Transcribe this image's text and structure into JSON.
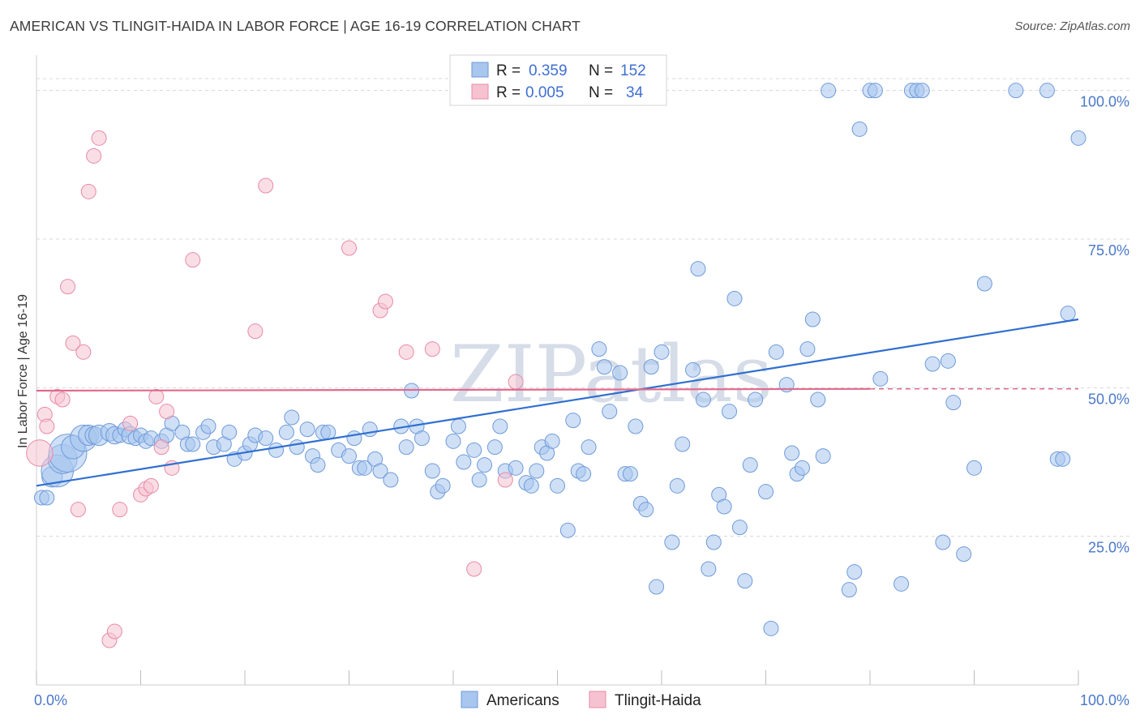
{
  "title": "AMERICAN VS TLINGIT-HAIDA IN LABOR FORCE | AGE 16-19 CORRELATION CHART",
  "source": "Source: ZipAtlas.com",
  "watermark": "ZIPatlas",
  "colors": {
    "americans_fill": "#a8c6ee",
    "americans_stroke": "#6f9ad9",
    "americans_line": "#2f6fd0",
    "tlingit_fill": "#f6c2d2",
    "tlingit_stroke": "#e88aa8",
    "tlingit_line": "#e06a8e",
    "grid": "#d8d8d8",
    "axis_label": "#4a78c8"
  },
  "legend": {
    "r_label": "R =",
    "n_label": "N =",
    "americans": {
      "r": "0.359",
      "n": "152"
    },
    "tlingit": {
      "r": "0.005",
      "n": "34"
    }
  },
  "chart_data": {
    "type": "scatter",
    "title": "AMERICAN VS TLINGIT-HAIDA IN LABOR FORCE | AGE 16-19 CORRELATION CHART",
    "xlabel": "",
    "ylabel": "In Labor Force | Age 16-19",
    "xlim": [
      0,
      100
    ],
    "ylim": [
      0,
      105
    ],
    "x_tick_labels": [
      "0.0%",
      "100.0%"
    ],
    "y_ticks": [
      25,
      50,
      75,
      100
    ],
    "y_tick_labels": [
      "25.0%",
      "50.0%",
      "75.0%",
      "100.0%"
    ],
    "grid": "horizontal dashed",
    "legend_position": "bottom-center",
    "series": [
      {
        "name": "Americans",
        "trendline": {
          "x": [
            0,
            100
          ],
          "y": [
            33.5,
            61.5
          ]
        },
        "points": [
          [
            0.5,
            31.5,
            1
          ],
          [
            1,
            31.5,
            1
          ],
          [
            1.5,
            35,
            1.4
          ],
          [
            2,
            36,
            2.2
          ],
          [
            2.5,
            38,
            2
          ],
          [
            3,
            39,
            2.6
          ],
          [
            3.5,
            40,
            1.6
          ],
          [
            4.5,
            41.5,
            1.8
          ],
          [
            5,
            42,
            1.4
          ],
          [
            5.5,
            42,
            1.2
          ],
          [
            6,
            42,
            1.4
          ],
          [
            7,
            42.5,
            1.2
          ],
          [
            7.5,
            42,
            1.2
          ],
          [
            8,
            42,
            1
          ],
          [
            8.5,
            43,
            1
          ],
          [
            9,
            42,
            1.2
          ],
          [
            9.5,
            41.5,
            1
          ],
          [
            10,
            42,
            1
          ],
          [
            10.5,
            41,
            1
          ],
          [
            11,
            41.5,
            1
          ],
          [
            12,
            41,
            1
          ],
          [
            12.5,
            42,
            1
          ],
          [
            13,
            44,
            1
          ],
          [
            14,
            42.5,
            1
          ],
          [
            14.5,
            40.5,
            1
          ],
          [
            15,
            40.5,
            1
          ],
          [
            16,
            42.5,
            1
          ],
          [
            16.5,
            43.5,
            1
          ],
          [
            17,
            40,
            1
          ],
          [
            18,
            40.5,
            1
          ],
          [
            18.5,
            42.5,
            1
          ],
          [
            19,
            38,
            1
          ],
          [
            20,
            39,
            1
          ],
          [
            20.5,
            40.5,
            1
          ],
          [
            21,
            42,
            1
          ],
          [
            22,
            41.5,
            1
          ],
          [
            23,
            39.5,
            1
          ],
          [
            24,
            42.5,
            1
          ],
          [
            24.5,
            45,
            1
          ],
          [
            25,
            40,
            1
          ],
          [
            26,
            43,
            1
          ],
          [
            26.5,
            38.5,
            1
          ],
          [
            27,
            37,
            1
          ],
          [
            27.5,
            42.5,
            1
          ],
          [
            28,
            42.5,
            1
          ],
          [
            29,
            39.5,
            1
          ],
          [
            30,
            38.5,
            1
          ],
          [
            30.5,
            41.5,
            1
          ],
          [
            31,
            36.5,
            1
          ],
          [
            31.5,
            36.5,
            1
          ],
          [
            32,
            43,
            1
          ],
          [
            32.5,
            38,
            1
          ],
          [
            33,
            36,
            1
          ],
          [
            34,
            34.5,
            1
          ],
          [
            35,
            43.5,
            1
          ],
          [
            35.5,
            40,
            1
          ],
          [
            36,
            49.5,
            1
          ],
          [
            36.5,
            43.5,
            1
          ],
          [
            37,
            41.5,
            1
          ],
          [
            38,
            36,
            1
          ],
          [
            38.5,
            32.5,
            1
          ],
          [
            39,
            33.5,
            1
          ],
          [
            40,
            41,
            1
          ],
          [
            40.5,
            43.5,
            1
          ],
          [
            41,
            37.5,
            1
          ],
          [
            42,
            39.5,
            1
          ],
          [
            42.5,
            34.5,
            1
          ],
          [
            43,
            37,
            1
          ],
          [
            44,
            40,
            1
          ],
          [
            44.5,
            43.5,
            1
          ],
          [
            45,
            36,
            1
          ],
          [
            46,
            36.5,
            1
          ],
          [
            47,
            34,
            1
          ],
          [
            47.5,
            33.5,
            1
          ],
          [
            48,
            36,
            1
          ],
          [
            48.5,
            40,
            1
          ],
          [
            49,
            39,
            1
          ],
          [
            49.5,
            41,
            1
          ],
          [
            50,
            33.5,
            1
          ],
          [
            51,
            26,
            1
          ],
          [
            51.5,
            44.5,
            1
          ],
          [
            52,
            36,
            1
          ],
          [
            52.5,
            35.5,
            1
          ],
          [
            53,
            40,
            1
          ],
          [
            54,
            56.5,
            1
          ],
          [
            54.5,
            53.5,
            1
          ],
          [
            55,
            46,
            1
          ],
          [
            56,
            52.5,
            1
          ],
          [
            56.5,
            35.5,
            1
          ],
          [
            57,
            35.5,
            1
          ],
          [
            57.5,
            43.5,
            1
          ],
          [
            58,
            30.5,
            1
          ],
          [
            58.5,
            29.5,
            1
          ],
          [
            59,
            53.5,
            1
          ],
          [
            59.5,
            16.5,
            1
          ],
          [
            60,
            56,
            1
          ],
          [
            61,
            24,
            1
          ],
          [
            61.5,
            33.5,
            1
          ],
          [
            62,
            40.5,
            1
          ],
          [
            63,
            53,
            1
          ],
          [
            63.5,
            70,
            1
          ],
          [
            64,
            48,
            1
          ],
          [
            64.5,
            19.5,
            1
          ],
          [
            65,
            24,
            1
          ],
          [
            65.5,
            32,
            1
          ],
          [
            66,
            30,
            1
          ],
          [
            66.5,
            46,
            1
          ],
          [
            67,
            65,
            1
          ],
          [
            67.5,
            26.5,
            1
          ],
          [
            68,
            17.5,
            1
          ],
          [
            68.5,
            37,
            1
          ],
          [
            69,
            48,
            1
          ],
          [
            70,
            32.5,
            1
          ],
          [
            70.5,
            9.5,
            1
          ],
          [
            71,
            56,
            1
          ],
          [
            72,
            50.5,
            1
          ],
          [
            72.5,
            39,
            1
          ],
          [
            73,
            35.5,
            1
          ],
          [
            73.5,
            36.5,
            1
          ],
          [
            74,
            56.5,
            1
          ],
          [
            74.5,
            61.5,
            1
          ],
          [
            75,
            48,
            1
          ],
          [
            75.5,
            38.5,
            1
          ],
          [
            76,
            100,
            1
          ],
          [
            78,
            16,
            1
          ],
          [
            78.5,
            19,
            1
          ],
          [
            79,
            93.5,
            1
          ],
          [
            80,
            100,
            1
          ],
          [
            80.5,
            100,
            1
          ],
          [
            81,
            51.5,
            1
          ],
          [
            83,
            17,
            1
          ],
          [
            84,
            100,
            1
          ],
          [
            84.5,
            100,
            1
          ],
          [
            85,
            100,
            1
          ],
          [
            86,
            54,
            1
          ],
          [
            87,
            24,
            1
          ],
          [
            87.5,
            54.5,
            1
          ],
          [
            88,
            47.5,
            1
          ],
          [
            89,
            22,
            1
          ],
          [
            90,
            36.5,
            1
          ],
          [
            91,
            67.5,
            1
          ],
          [
            94,
            100,
            1
          ],
          [
            97,
            100,
            1
          ],
          [
            98,
            38,
            1
          ],
          [
            98.5,
            38,
            1
          ],
          [
            100,
            92,
            1
          ],
          [
            99,
            62.5,
            1
          ]
        ]
      },
      {
        "name": "Tlingit-Haida",
        "trendline": {
          "x": [
            0,
            80
          ],
          "y": [
            49.5,
            49.8
          ]
        },
        "points": [
          [
            0.3,
            39,
            1.8
          ],
          [
            0.8,
            45.5,
            1
          ],
          [
            1,
            43.5,
            1
          ],
          [
            2,
            48.5,
            1
          ],
          [
            2.5,
            48,
            1
          ],
          [
            3,
            67,
            1
          ],
          [
            3.5,
            57.5,
            1
          ],
          [
            4,
            29.5,
            1
          ],
          [
            4.5,
            56,
            1
          ],
          [
            5,
            83,
            1
          ],
          [
            5.5,
            89,
            1
          ],
          [
            6,
            92,
            1
          ],
          [
            7,
            7.5,
            1
          ],
          [
            7.5,
            9,
            1
          ],
          [
            8,
            29.5,
            1
          ],
          [
            9,
            44,
            1
          ],
          [
            10,
            32,
            1
          ],
          [
            10.5,
            33,
            1
          ],
          [
            11,
            33.5,
            1
          ],
          [
            11.5,
            48.5,
            1
          ],
          [
            12,
            40,
            1
          ],
          [
            12.5,
            46,
            1
          ],
          [
            13,
            36.5,
            1
          ],
          [
            15,
            71.5,
            1
          ],
          [
            21,
            59.5,
            1
          ],
          [
            22,
            84,
            1
          ],
          [
            30,
            73.5,
            1
          ],
          [
            33,
            63,
            1
          ],
          [
            33.5,
            64.5,
            1
          ],
          [
            35.5,
            56,
            1
          ],
          [
            38,
            56.5,
            1
          ],
          [
            42,
            19.5,
            1
          ],
          [
            45,
            34.5,
            1
          ],
          [
            46,
            51,
            1
          ]
        ]
      }
    ]
  },
  "bottom_legend": [
    "Americans",
    "Tlingit-Haida"
  ]
}
